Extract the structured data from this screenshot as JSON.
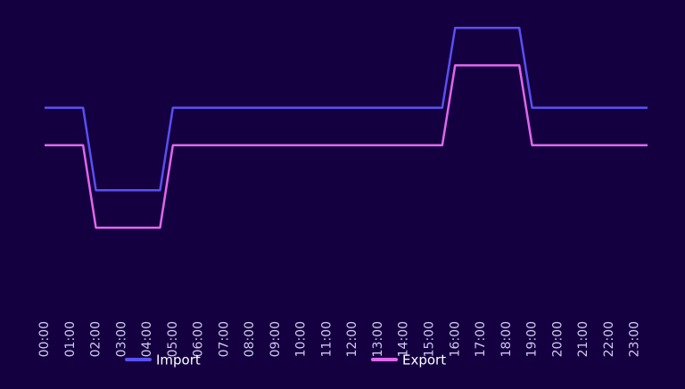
{
  "chart_data": {
    "type": "line",
    "x": [
      0,
      1.5,
      2,
      4.5,
      5,
      15.5,
      16,
      18.5,
      19,
      23.5
    ],
    "series": [
      {
        "name": "Import",
        "color": "#5a4ff2",
        "values": [
          6.4,
          6.4,
          3.1,
          3.1,
          6.4,
          6.4,
          9.6,
          9.6,
          6.4,
          6.4
        ]
      },
      {
        "name": "Export",
        "color": "#e066ee",
        "values": [
          4.9,
          4.9,
          1.6,
          1.6,
          4.9,
          4.9,
          8.1,
          8.1,
          4.9,
          4.9
        ]
      }
    ],
    "xlim": [
      0,
      23.5
    ],
    "xticks": [
      {
        "value": 0,
        "label": "00:00"
      },
      {
        "value": 1,
        "label": "01:00"
      },
      {
        "value": 2,
        "label": "02:00"
      },
      {
        "value": 3,
        "label": "03:00"
      },
      {
        "value": 4,
        "label": "04:00"
      },
      {
        "value": 5,
        "label": "05:00"
      },
      {
        "value": 6,
        "label": "06:00"
      },
      {
        "value": 7,
        "label": "07:00"
      },
      {
        "value": 8,
        "label": "08:00"
      },
      {
        "value": 9,
        "label": "09:00"
      },
      {
        "value": 10,
        "label": "10:00"
      },
      {
        "value": 11,
        "label": "11:00"
      },
      {
        "value": 12,
        "label": "12:00"
      },
      {
        "value": 13,
        "label": "13:00"
      },
      {
        "value": 14,
        "label": "14:00"
      },
      {
        "value": 15,
        "label": "15:00"
      },
      {
        "value": 16,
        "label": "16:00"
      },
      {
        "value": 17,
        "label": "17:00"
      },
      {
        "value": 18,
        "label": "18:00"
      },
      {
        "value": 19,
        "label": "19:00"
      },
      {
        "value": 20,
        "label": "20:00"
      },
      {
        "value": 21,
        "label": "21:00"
      },
      {
        "value": 22,
        "label": "22:00"
      },
      {
        "value": 23,
        "label": "23:00"
      }
    ],
    "ylim": [
      0,
      10
    ],
    "grid": false
  }
}
